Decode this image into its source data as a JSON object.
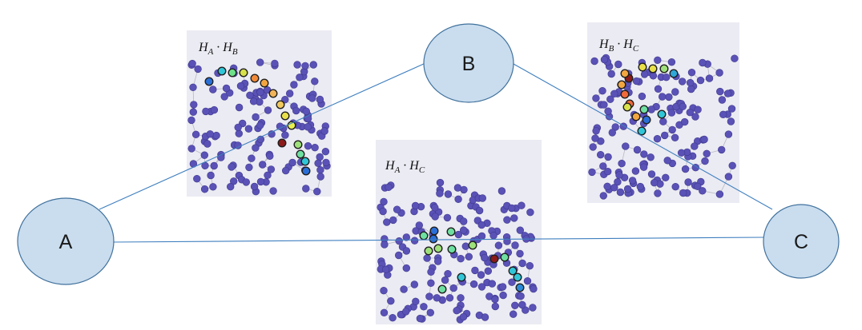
{
  "nodes": [
    {
      "id": "A",
      "label": "A"
    },
    {
      "id": "B",
      "label": "B"
    },
    {
      "id": "C",
      "label": "C"
    }
  ],
  "edges": [
    {
      "from": "A",
      "to": "B"
    },
    {
      "from": "B",
      "to": "C"
    },
    {
      "from": "A",
      "to": "C"
    }
  ],
  "panels": [
    {
      "id": "AB",
      "left_symbol": "H",
      "left_sub": "A",
      "operator": "·",
      "right_symbol": "H",
      "right_sub": "B"
    },
    {
      "id": "BC",
      "left_symbol": "H",
      "left_sub": "B",
      "operator": "·",
      "right_symbol": "H",
      "right_sub": "C"
    },
    {
      "id": "AC",
      "left_symbol": "H",
      "left_sub": "A",
      "operator": "·",
      "right_symbol": "H",
      "right_sub": "C"
    }
  ],
  "colors": {
    "node_fill": "#c9ddef",
    "node_stroke": "#41719c",
    "edge": "#3f7fbf",
    "panel_background": "#ebebf3",
    "mesh_vertex": "#5a52b6",
    "mesh_edge": "#b8b8c4"
  }
}
